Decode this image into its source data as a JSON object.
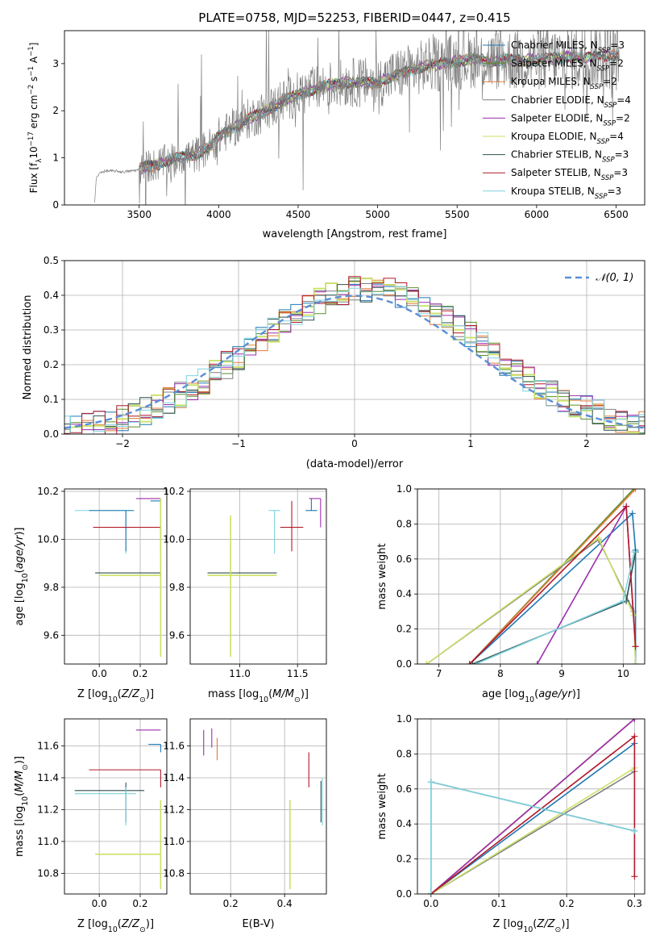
{
  "colors": {
    "Chabrier MILES": "#1f77b4",
    "Salpeter MILES": "#5b8f2a",
    "Kroupa MILES": "#e07b39",
    "Chabrier ELODIE": "#7f7f7f",
    "Salpeter ELODIE": "#9b2fae",
    "Kroupa ELODIE": "#c9e265",
    "Chabrier STELIB": "#2f4f4f",
    "Salpeter STELIB": "#b2182b",
    "Kroupa STELIB": "#7fd3df"
  },
  "chart_data": [
    {
      "id": "spectrum",
      "type": "line",
      "title": "PLATE=0758, MJD=52253, FIBERID=0447, z=0.415",
      "xlabel": "wavelength [Angstrom, rest frame]",
      "ylabel": "Flux [f_λ 10^-17 erg cm^-2 s^-1 A^-1]",
      "xlim": [
        3030,
        6680
      ],
      "ylim": [
        0,
        3.7
      ],
      "xticks": [
        3500,
        4000,
        4500,
        5000,
        5500,
        6000,
        6500
      ],
      "yticks": [
        0,
        1,
        2,
        3
      ],
      "legend_position": "top-right",
      "legend": [
        {
          "label": "Chabrier MILES, N_SSP=3"
        },
        {
          "label": "Salpeter MILES, N_SSP=2"
        },
        {
          "label": "Kroupa MILES, N_SSP=2"
        },
        {
          "label": "Chabrier ELODIE, N_SSP=4"
        },
        {
          "label": "Salpeter ELODIE, N_SSP=2"
        },
        {
          "label": "Kroupa ELODIE, N_SSP=4"
        },
        {
          "label": "Chabrier STELIB, N_SSP=3"
        },
        {
          "label": "Salpeter STELIB, N_SSP=3"
        },
        {
          "label": "Kroupa STELIB, N_SSP=3"
        }
      ],
      "data_curve": {
        "x": [
          3220,
          3230,
          3260,
          3300,
          3350,
          3400,
          3450,
          3500,
          3550,
          3600,
          3650,
          3700,
          3750,
          3800,
          3850,
          3900,
          3950,
          4000,
          4100,
          4200,
          4300,
          4400,
          4500,
          4600,
          4700,
          4800,
          4900,
          5000,
          5100,
          5200,
          5300,
          5400,
          5500,
          5600,
          5700,
          5800,
          5900,
          6000,
          6100,
          6200,
          6300,
          6400,
          6500
        ],
        "y": [
          0.05,
          0.58,
          0.7,
          0.72,
          0.72,
          0.7,
          0.72,
          0.75,
          0.82,
          0.85,
          0.9,
          0.95,
          1.0,
          1.05,
          1.05,
          1.15,
          1.25,
          1.45,
          1.65,
          1.85,
          2.0,
          2.2,
          2.35,
          2.45,
          2.55,
          2.6,
          2.6,
          2.6,
          2.75,
          2.85,
          2.95,
          3.0,
          3.05,
          3.1,
          3.05,
          3.1,
          3.05,
          3.1,
          3.1,
          3.15,
          3.1,
          3.2,
          3.15
        ]
      },
      "noise_start": 3500,
      "noise_end": 6520,
      "model_start": 3500,
      "model_end": 6520
    },
    {
      "id": "residuals",
      "type": "histogram",
      "xlabel": "(data-model)/error",
      "ylabel": "Normed distribution",
      "xlim": [
        -2.5,
        2.5
      ],
      "ylim": [
        0,
        0.5
      ],
      "xticks": [
        -2,
        -1,
        0,
        1,
        2
      ],
      "yticks": [
        0.0,
        0.1,
        0.2,
        0.3,
        0.4,
        0.5
      ],
      "grid": true,
      "legend_position": "top-right",
      "reference_curve": {
        "label": "𝒩(0, 1)",
        "mean": 0,
        "sigma": 1
      },
      "bin_width": 0.1
    },
    {
      "id": "age-vs-z",
      "type": "errorbar",
      "xlabel": "Z [log10(Z/Z⊙)]",
      "ylabel": "age [log10(age/yr)]",
      "xlim": [
        -0.17,
        0.33
      ],
      "ylim": [
        9.48,
        10.21
      ],
      "xticks": [
        0.0,
        0.2
      ],
      "yticks": [
        9.6,
        9.8,
        10.0,
        10.2
      ],
      "grid": true,
      "points": [
        {
          "series": "Kroupa STELIB",
          "x": 0.13,
          "y": 10.12,
          "xerr": [
            0.25,
            0.03
          ],
          "yerr": [
            0.18,
            0.0
          ]
        },
        {
          "series": "Chabrier MILES",
          "x": 0.13,
          "y": 10.12,
          "xerr": [
            0.18,
            0.04
          ],
          "yerr": [
            0.17,
            0.0
          ]
        },
        {
          "series": "Salpeter ELODIE",
          "x": 0.3,
          "y": 10.17,
          "xerr": [
            0.12,
            0.0
          ],
          "yerr": [
            0.0,
            0.0
          ]
        },
        {
          "series": "Chabrier MILES",
          "x": 0.3,
          "y": 10.16,
          "xerr": [
            0.05,
            0.0
          ],
          "yerr": [
            0.02,
            0.0
          ]
        },
        {
          "series": "Salpeter STELIB",
          "x": 0.3,
          "y": 10.05,
          "xerr": [
            0.33,
            0.0
          ],
          "yerr": [
            0.1,
            0.11
          ]
        },
        {
          "series": "Chabrier STELIB",
          "x": 0.3,
          "y": 9.86,
          "xerr": [
            0.32,
            0.0
          ],
          "yerr": [
            0.0,
            0.0
          ]
        },
        {
          "series": "Kroupa ELODIE",
          "x": 0.3,
          "y": 9.85,
          "xerr": [
            0.3,
            0.0
          ],
          "yerr": [
            0.34,
            0.32
          ]
        }
      ]
    },
    {
      "id": "age-vs-mass",
      "type": "errorbar",
      "xlabel": "mass [log10(M/M⊙)]",
      "ylabel": "",
      "xlim": [
        10.57,
        11.75
      ],
      "ylim": [
        9.48,
        10.21
      ],
      "xticks": [
        11.0,
        11.5
      ],
      "yticks": [
        9.6,
        9.8,
        10.0,
        10.2
      ],
      "grid": true,
      "points": [
        {
          "series": "Kroupa STELIB",
          "x": 11.3,
          "y": 10.12,
          "xerr": [
            0.05,
            0.05
          ],
          "yerr": [
            0.18,
            0.0
          ]
        },
        {
          "series": "Chabrier MILES",
          "x": 11.62,
          "y": 10.12,
          "xerr": [
            0.05,
            0.05
          ],
          "yerr": [
            0.0,
            0.05
          ]
        },
        {
          "series": "Salpeter ELODIE",
          "x": 11.7,
          "y": 10.17,
          "xerr": [
            0.1,
            0.0
          ],
          "yerr": [
            0.12,
            0.0
          ]
        },
        {
          "series": "Salpeter STELIB",
          "x": 11.45,
          "y": 10.05,
          "xerr": [
            0.1,
            0.1
          ],
          "yerr": [
            0.1,
            0.11
          ]
        },
        {
          "series": "Chabrier STELIB",
          "x": 10.92,
          "y": 9.86,
          "xerr": [
            0.2,
            0.4
          ],
          "yerr": [
            0.0,
            0.0
          ]
        },
        {
          "series": "Kroupa ELODIE",
          "x": 10.92,
          "y": 9.85,
          "xerr": [
            0.2,
            0.4
          ],
          "yerr": [
            0.34,
            0.25
          ]
        }
      ]
    },
    {
      "id": "weight-vs-age",
      "type": "line",
      "xlabel": "age [log10(age/yr)]",
      "ylabel": "mass weight",
      "xlim": [
        6.65,
        10.35
      ],
      "ylim": [
        0.0,
        1.0
      ],
      "xticks": [
        7,
        8,
        9,
        10
      ],
      "yticks": [
        0.0,
        0.2,
        0.4,
        0.6,
        0.8,
        1.0
      ],
      "grid": true,
      "series": [
        {
          "name": "Chabrier MILES",
          "x": [
            7.5,
            10.15,
            10.2,
            10.2
          ],
          "y": [
            0.0,
            0.86,
            0.65,
            0.0
          ]
        },
        {
          "name": "Salpeter MILES",
          "x": [
            7.5,
            10.17
          ],
          "y": [
            0.0,
            1.0
          ]
        },
        {
          "name": "Kroupa MILES",
          "x": [
            7.5,
            10.2
          ],
          "y": [
            0.0,
            1.0
          ]
        },
        {
          "name": "Chabrier ELODIE",
          "x": [
            6.8,
            9.6,
            10.17,
            10.2
          ],
          "y": [
            0.0,
            0.71,
            0.3,
            0.0
          ]
        },
        {
          "name": "Salpeter ELODIE",
          "x": [
            8.6,
            10.05,
            10.2
          ],
          "y": [
            0.0,
            0.9,
            0.1
          ]
        },
        {
          "name": "Kroupa ELODIE",
          "x": [
            6.8,
            9.6,
            10.17,
            10.2
          ],
          "y": [
            0.0,
            0.72,
            0.28,
            0.0
          ]
        },
        {
          "name": "Chabrier STELIB",
          "x": [
            7.55,
            10.05,
            10.2
          ],
          "y": [
            0.0,
            0.36,
            0.64
          ]
        },
        {
          "name": "Salpeter STELIB",
          "x": [
            7.5,
            10.05,
            10.2
          ],
          "y": [
            0.0,
            0.9,
            0.1
          ]
        },
        {
          "name": "Kroupa STELIB",
          "x": [
            7.6,
            10.0,
            10.18
          ],
          "y": [
            0.0,
            0.36,
            0.64
          ]
        }
      ]
    },
    {
      "id": "mass-vs-z",
      "type": "errorbar",
      "xlabel": "Z [log10(Z/Z⊙)]",
      "ylabel": "mass [log10(M/M⊙)]",
      "xlim": [
        -0.17,
        0.33
      ],
      "ylim": [
        10.67,
        11.77
      ],
      "xticks": [
        0.0,
        0.2
      ],
      "yticks": [
        10.8,
        11.0,
        11.2,
        11.4,
        11.6
      ],
      "grid": true,
      "points": [
        {
          "series": "Salpeter ELODIE",
          "x": 0.3,
          "y": 11.7,
          "xerr": [
            0.12,
            0.0
          ],
          "yerr": [
            0.0,
            0.0
          ]
        },
        {
          "series": "Chabrier MILES",
          "x": 0.3,
          "y": 11.61,
          "xerr": [
            0.06,
            0.0
          ],
          "yerr": [
            0.05,
            0.0
          ]
        },
        {
          "series": "Salpeter STELIB",
          "x": 0.3,
          "y": 11.45,
          "xerr": [
            0.35,
            0.0
          ],
          "yerr": [
            0.11,
            0.0
          ]
        },
        {
          "series": "Chabrier STELIB",
          "x": 0.13,
          "y": 11.32,
          "xerr": [
            0.25,
            0.09
          ],
          "yerr": [
            0.2,
            0.05
          ]
        },
        {
          "series": "Kroupa STELIB",
          "x": 0.13,
          "y": 11.3,
          "xerr": [
            0.25,
            0.05
          ],
          "yerr": [
            0.2,
            0.04
          ]
        },
        {
          "series": "Kroupa ELODIE",
          "x": 0.3,
          "y": 10.92,
          "xerr": [
            0.32,
            0.0
          ],
          "yerr": [
            0.22,
            0.34
          ]
        }
      ]
    },
    {
      "id": "mass-vs-ebv",
      "type": "errorbar",
      "xlabel": "E(B-V)",
      "ylabel": "",
      "xlim": [
        0.05,
        0.555
      ],
      "ylim": [
        10.67,
        11.77
      ],
      "xticks": [
        0.2,
        0.4
      ],
      "yticks": [
        10.8,
        11.0,
        11.2,
        11.4,
        11.6
      ],
      "grid": true,
      "points": [
        {
          "series": "Salpeter ELODIE",
          "x": 0.1,
          "y": 11.62,
          "xerr": [
            0,
            0
          ],
          "yerr": [
            0.08,
            0.08
          ]
        },
        {
          "series": "Salpeter ELODIE",
          "x": 0.13,
          "y": 11.65,
          "xerr": [
            0,
            0
          ],
          "yerr": [
            0.06,
            0.06
          ]
        },
        {
          "series": "Kroupa MILES",
          "x": 0.15,
          "y": 11.58,
          "xerr": [
            0,
            0
          ],
          "yerr": [
            0.07,
            0.07
          ]
        },
        {
          "series": "Salpeter STELIB",
          "x": 0.49,
          "y": 11.45,
          "xerr": [
            0,
            0
          ],
          "yerr": [
            0.11,
            0.11
          ]
        },
        {
          "series": "Chabrier STELIB",
          "x": 0.535,
          "y": 11.25,
          "xerr": [
            0,
            0
          ],
          "yerr": [
            0.13,
            0.13
          ]
        },
        {
          "series": "Kroupa STELIB",
          "x": 0.54,
          "y": 11.25,
          "xerr": [
            0,
            0
          ],
          "yerr": [
            0.15,
            0.15
          ]
        },
        {
          "series": "Kroupa ELODIE",
          "x": 0.42,
          "y": 10.98,
          "xerr": [
            0,
            0
          ],
          "yerr": [
            0.28,
            0.28
          ]
        }
      ]
    },
    {
      "id": "weight-vs-z",
      "type": "line",
      "xlabel": "Z [log10(Z/Z⊙)]",
      "ylabel": "mass weight",
      "xlim": [
        -0.02,
        0.315
      ],
      "ylim": [
        0.0,
        1.0
      ],
      "xticks": [
        0.0,
        0.1,
        0.2,
        0.3
      ],
      "yticks": [
        0.0,
        0.2,
        0.4,
        0.6,
        0.8,
        1.0
      ],
      "grid": true,
      "series": [
        {
          "name": "Chabrier MILES",
          "x": [
            0.0,
            0.3
          ],
          "y": [
            0.0,
            0.86
          ]
        },
        {
          "name": "Salpeter MILES",
          "x": [
            0.0,
            0.3
          ],
          "y": [
            0.0,
            1.0
          ]
        },
        {
          "name": "Kroupa MILES",
          "x": [
            0.0,
            0.3
          ],
          "y": [
            0.0,
            1.0
          ]
        },
        {
          "name": "Chabrier ELODIE",
          "x": [
            0.0,
            0.3
          ],
          "y": [
            0.0,
            0.7
          ]
        },
        {
          "name": "Salpeter ELODIE",
          "x": [
            0.0,
            0.3
          ],
          "y": [
            0.0,
            1.0
          ]
        },
        {
          "name": "Kroupa ELODIE",
          "x": [
            0.0,
            0.3
          ],
          "y": [
            0.0,
            0.72
          ]
        },
        {
          "name": "Chabrier STELIB",
          "x": [
            0.0,
            0.0,
            0.3
          ],
          "y": [
            0.0,
            0.64,
            0.36
          ]
        },
        {
          "name": "Salpeter STELIB",
          "x": [
            0.0,
            0.3,
            0.3
          ],
          "y": [
            0.0,
            0.9,
            0.1
          ]
        },
        {
          "name": "Kroupa STELIB",
          "x": [
            0.0,
            0.0,
            0.3
          ],
          "y": [
            0.0,
            0.64,
            0.36
          ]
        }
      ]
    }
  ]
}
